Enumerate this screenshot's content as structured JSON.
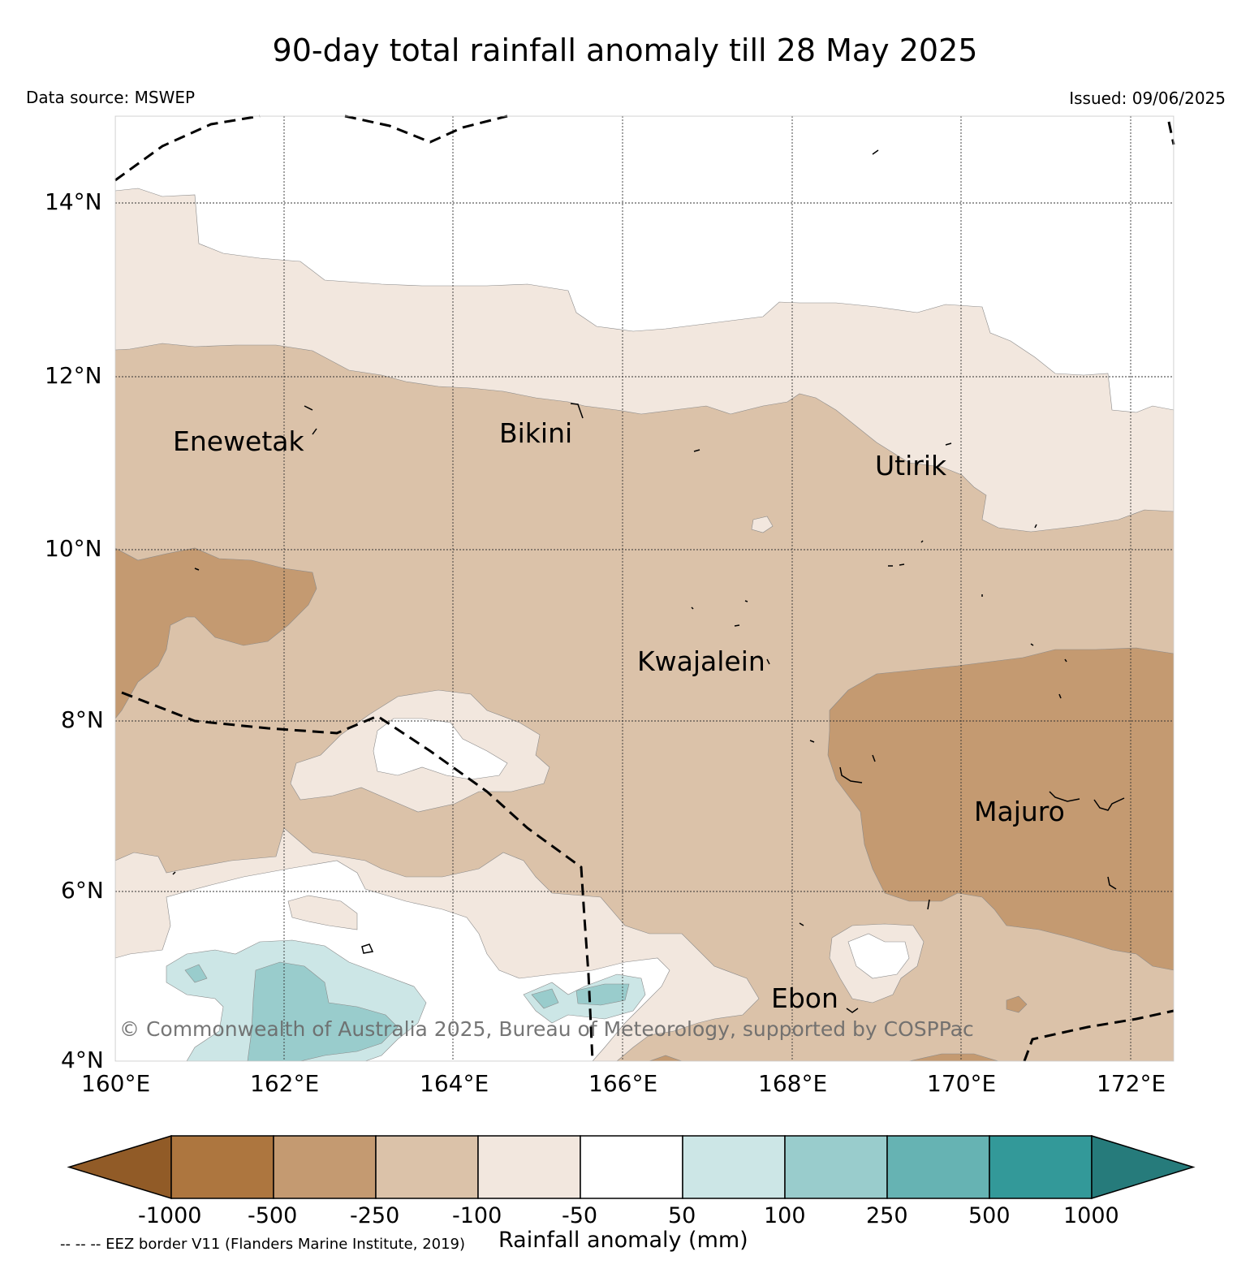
{
  "title": "90-day total rainfall anomaly till 28 May 2025",
  "data_source": "Data source: MSWEP",
  "issued": "Issued: 09/06/2025",
  "map": {
    "lat_labels": [
      "14°N",
      "12°N",
      "10°N",
      "8°N",
      "6°N",
      "4°N"
    ],
    "lon_labels": [
      "160°E",
      "162°E",
      "164°E",
      "166°E",
      "168°E",
      "170°E",
      "172°E"
    ],
    "places": [
      {
        "name": "Enewetak"
      },
      {
        "name": "Bikini"
      },
      {
        "name": "Utirik"
      },
      {
        "name": "Kwajalein"
      },
      {
        "name": "Majuro"
      },
      {
        "name": "Ebon"
      }
    ],
    "copyright": "© Commonwealth of Australia 2025, Bureau of Meteorology, supported by COSPPac"
  },
  "colorbar": {
    "title": "Rainfall anomaly (mm)",
    "ticks": [
      "-1000",
      "-500",
      "-250",
      "-100",
      "-50",
      "50",
      "100",
      "250",
      "500",
      "1000"
    ],
    "colors": [
      "#915b27",
      "#ad763f",
      "#c49a71",
      "#dbc2a9",
      "#f2e7de",
      "#ffffff",
      "#cce6e6",
      "#99cccc",
      "#66b3b3",
      "#339999",
      "#267b7b"
    ]
  },
  "footnote": "-- -- -- EEZ border V11 (Flanders Marine Institute, 2019)"
}
